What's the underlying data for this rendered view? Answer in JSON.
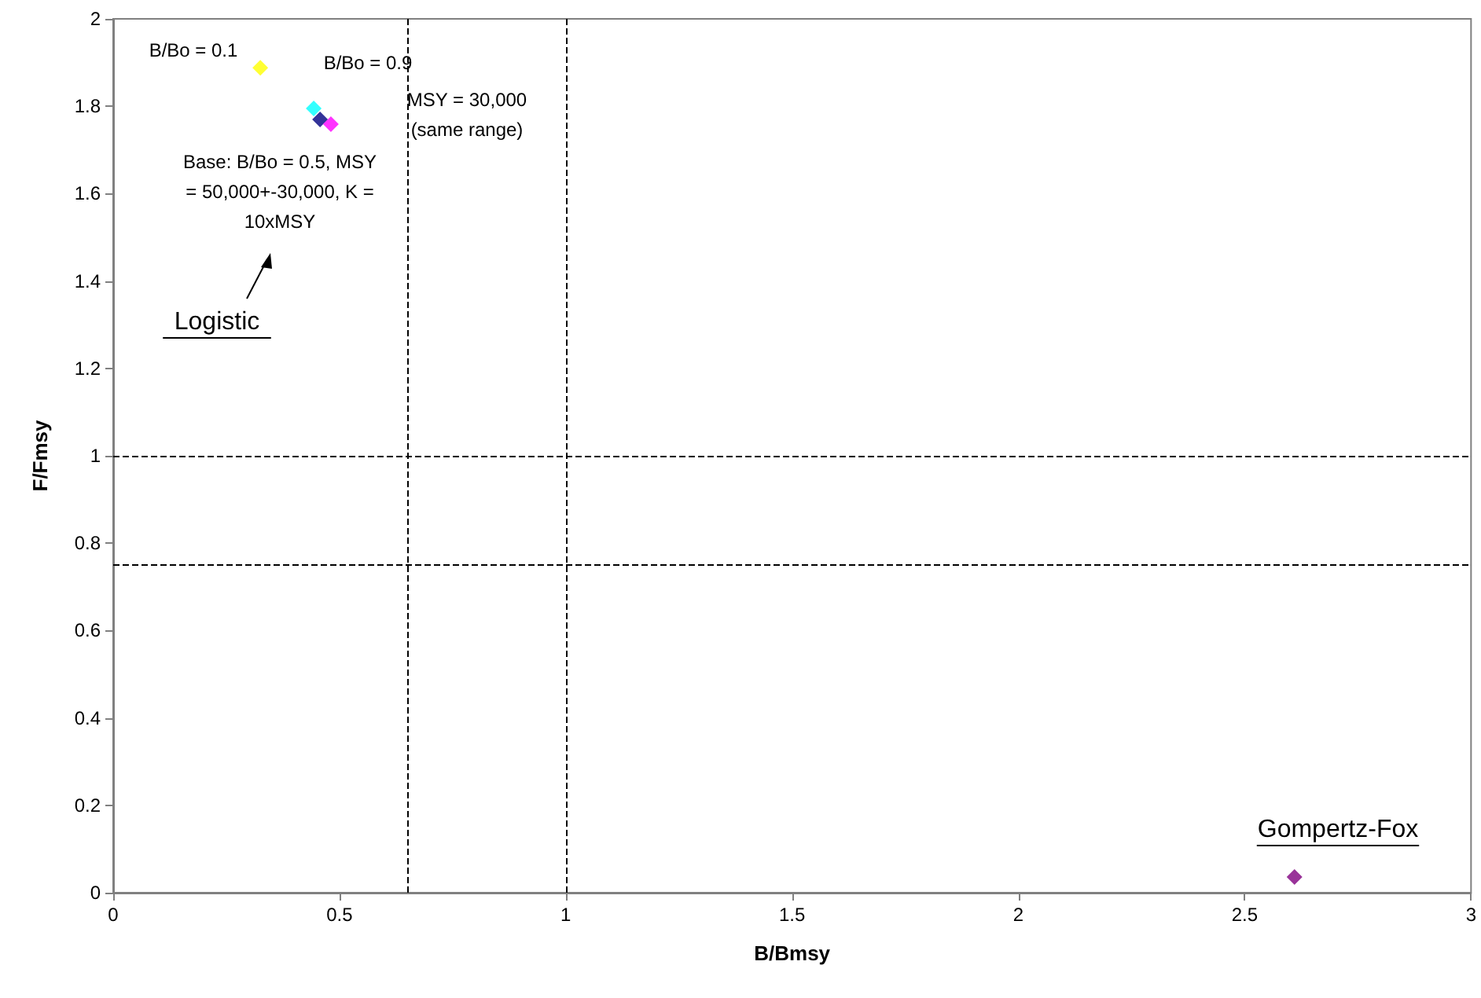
{
  "chart_data": {
    "type": "scatter",
    "xlabel": "B/Bmsy",
    "ylabel": "F/Fmsy",
    "marker": "diamond",
    "grid": false,
    "series": [
      {
        "color": "#ffff00",
        "x": [
          0.325
        ],
        "values": [
          1.888
        ]
      },
      {
        "color": "#00ffff",
        "x": [
          0.443
        ],
        "values": [
          1.795
        ]
      },
      {
        "color": "#000080",
        "x": [
          0.457
        ],
        "values": [
          1.77
        ]
      },
      {
        "color": "#ff00ff",
        "x": [
          0.481
        ],
        "values": [
          1.759
        ]
      },
      {
        "color": "#800080",
        "x": [
          2.61
        ],
        "values": [
          0.036
        ]
      }
    ],
    "xlim": [
      0,
      3
    ],
    "xticks": [
      0,
      0.5,
      1,
      1.5,
      2,
      2.5,
      3
    ],
    "ylim": [
      0,
      2
    ],
    "yticks": [
      0,
      0.2,
      0.4,
      0.6,
      0.8,
      1,
      1.2,
      1.4,
      1.6,
      1.8,
      2
    ],
    "ref_lines": [
      {
        "axis": "x",
        "value": 0.65,
        "line_style": "dashed",
        "color": "#000000"
      },
      {
        "axis": "x",
        "value": 1,
        "line_style": "dashed",
        "color": "#000000"
      },
      {
        "axis": "y",
        "value": 1,
        "line_style": "dashed",
        "color": "#000000"
      },
      {
        "axis": "y",
        "value": 0.75,
        "line_style": "dashed",
        "color": "#000000"
      }
    ],
    "annotations": [
      "B/Bo = 0.1",
      "B/Bo = 0.9",
      "MSY = 30,000\n(same range)",
      "Base: B/Bo = 0.5, MSY\n= 50,000+-30,000, K =\n10xMSY",
      "Logistic",
      "Gompertz-Fox"
    ]
  }
}
